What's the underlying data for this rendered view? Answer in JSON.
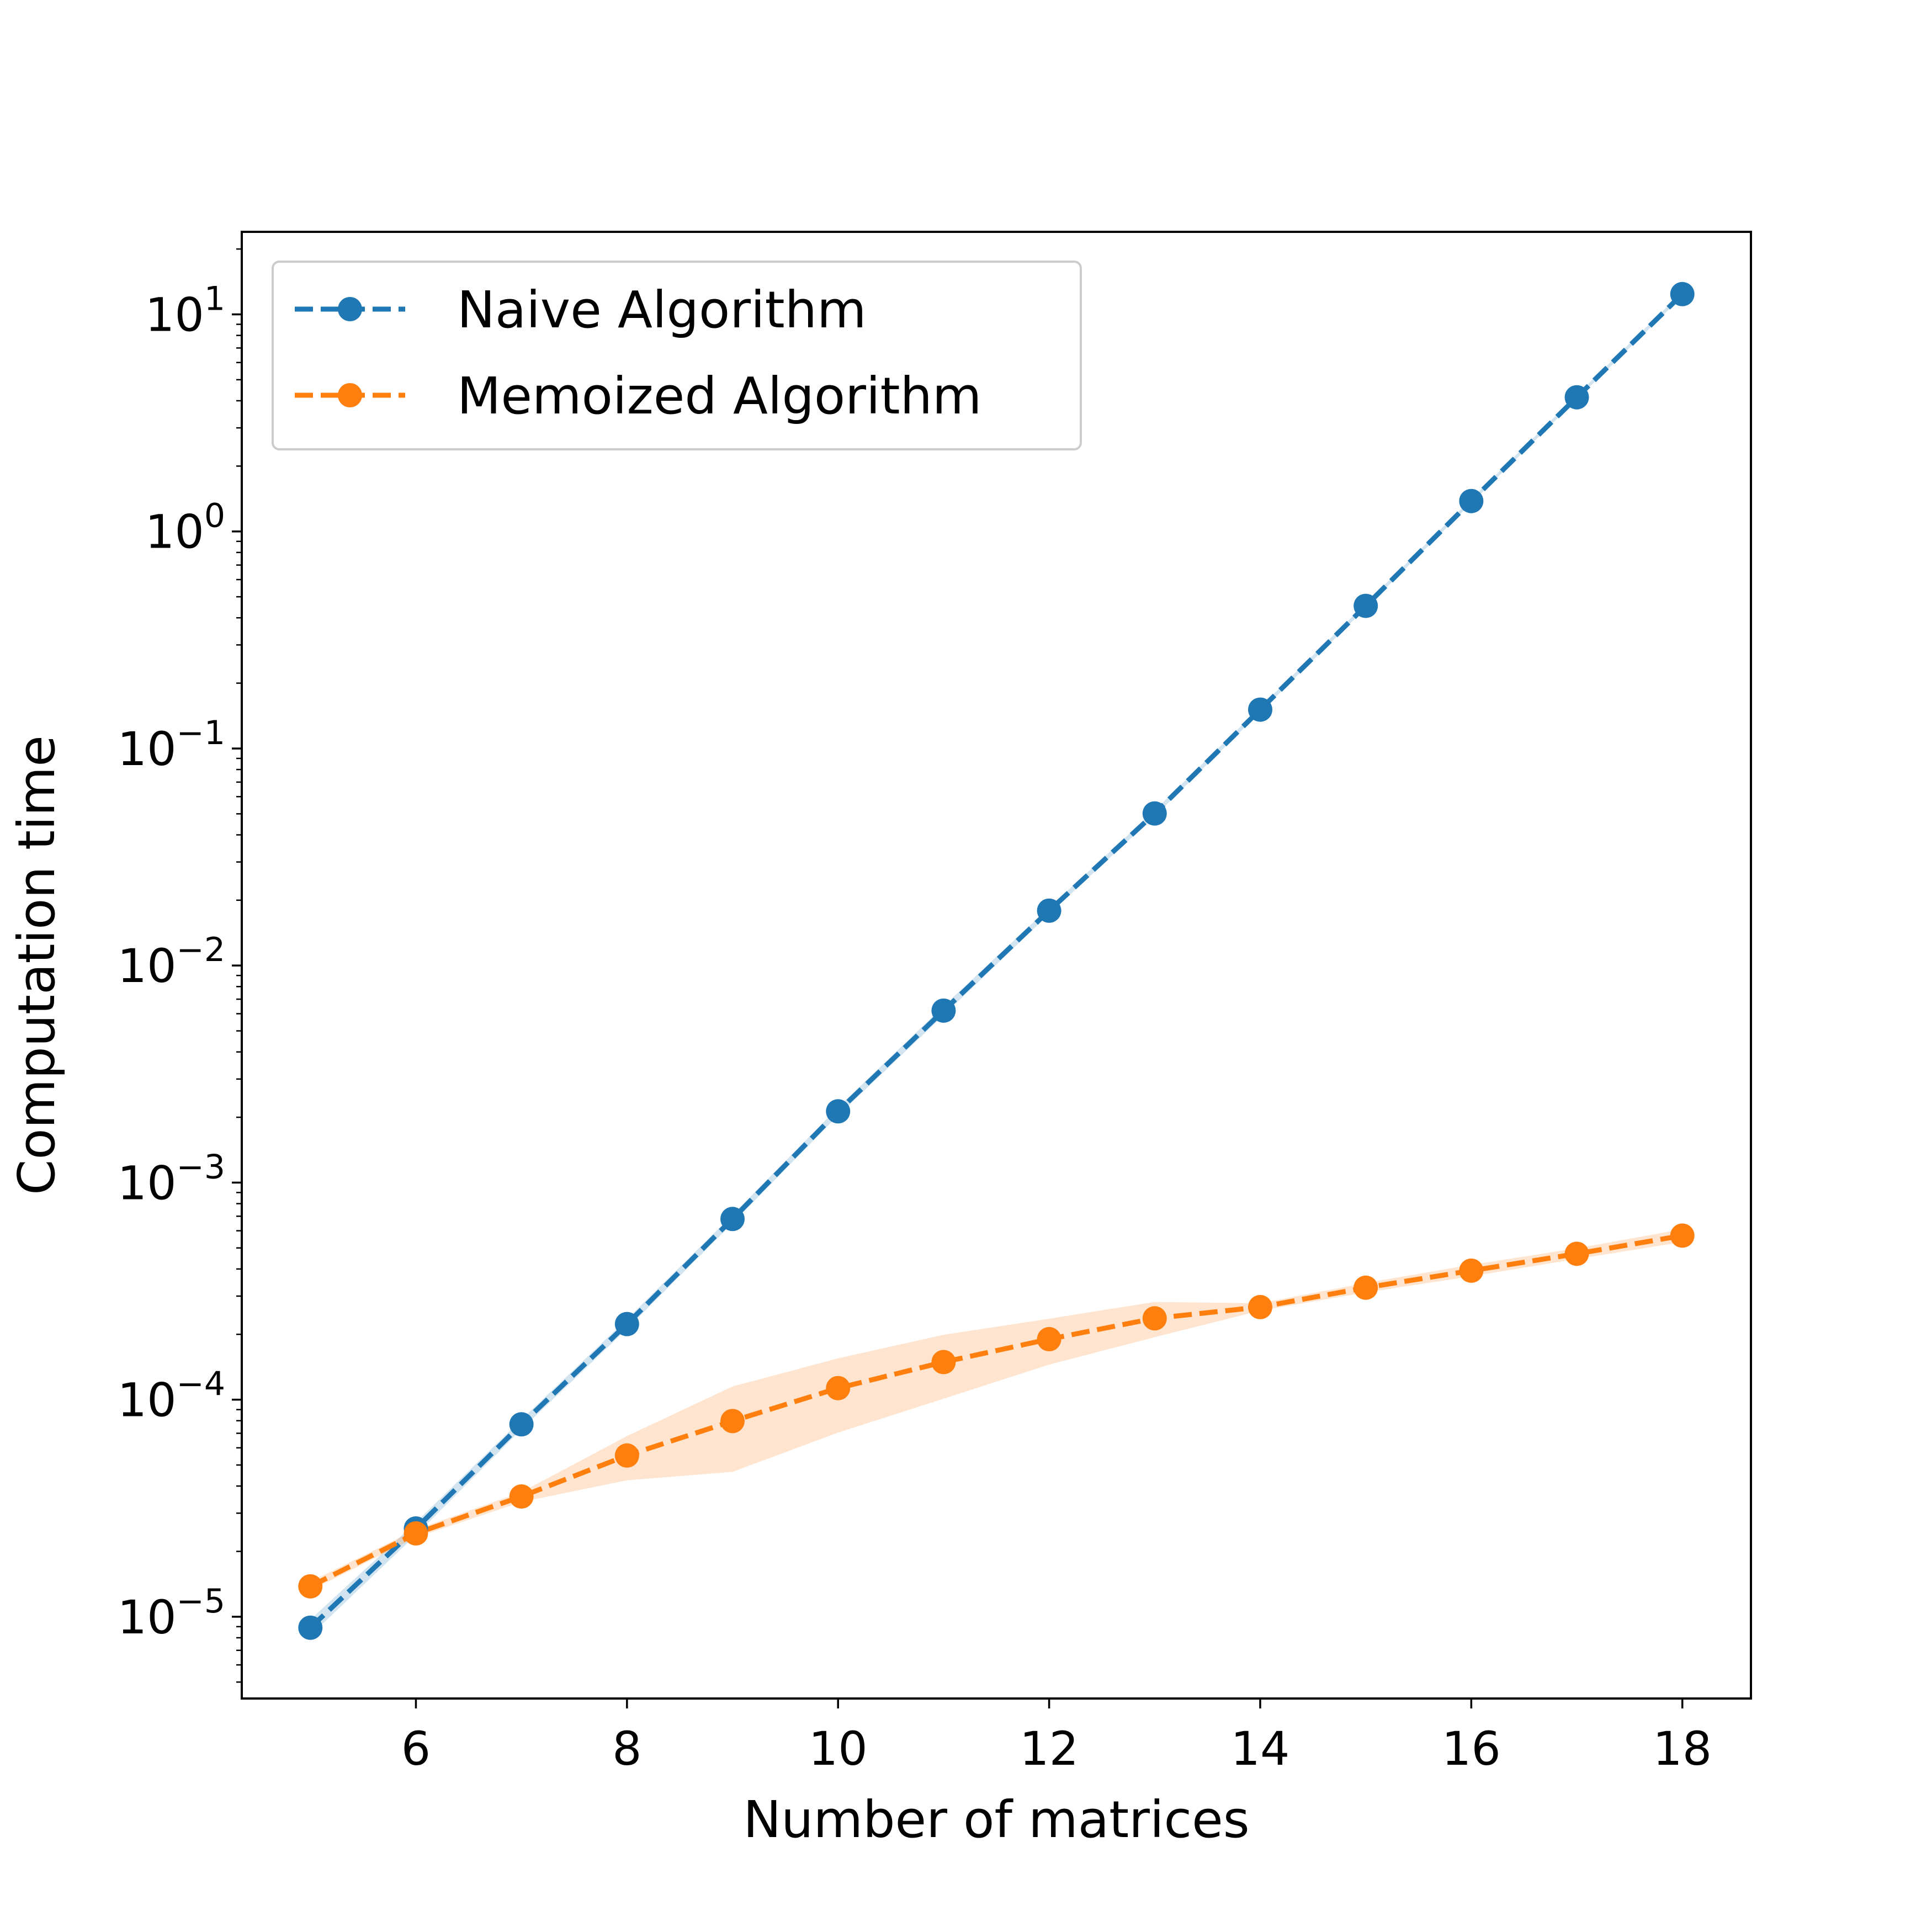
{
  "chart_data": {
    "type": "line",
    "xlabel": "Number of matrices",
    "ylabel": "Computation time",
    "yscale": "log",
    "xlim": [
      4.35,
      18.65
    ],
    "ylim": [
      4.2e-06,
      24
    ],
    "xticks": [
      6,
      8,
      10,
      12,
      14,
      16,
      18
    ],
    "yticks": [
      {
        "value": 1e-05,
        "base": "10",
        "exp": "−5"
      },
      {
        "value": 0.0001,
        "base": "10",
        "exp": "−4"
      },
      {
        "value": 0.001,
        "base": "10",
        "exp": "−3"
      },
      {
        "value": 0.01,
        "base": "10",
        "exp": "−2"
      },
      {
        "value": 0.1,
        "base": "10",
        "exp": "−1"
      },
      {
        "value": 1,
        "base": "10",
        "exp": "0"
      },
      {
        "value": 10,
        "base": "10",
        "exp": "1"
      }
    ],
    "grid": false,
    "legend": {
      "placement": "upper-left"
    },
    "x": [
      5,
      6,
      7,
      8,
      9,
      10,
      11,
      12,
      13,
      14,
      15,
      16,
      17,
      18
    ],
    "series": [
      {
        "name": "Naive Algorithm",
        "color": "#1f77b4",
        "linestyle": "dashed",
        "marker": "circle",
        "values": [
          8.9e-06,
          2.55e-05,
          7.7e-05,
          0.000223,
          0.00068,
          0.00213,
          0.0062,
          0.0179,
          0.0502,
          0.151,
          0.454,
          1.38,
          4.15,
          12.4
        ],
        "band_lower": [
          8.2e-06,
          2.38e-05,
          7.3e-05,
          0.000212,
          0.00065,
          0.00204,
          0.0059,
          0.0173,
          0.0487,
          0.147,
          0.443,
          1.35,
          4.06,
          12.1
        ],
        "band_upper": [
          9.7e-06,
          2.72e-05,
          8.1e-05,
          0.000235,
          0.00071,
          0.00222,
          0.0065,
          0.0185,
          0.0518,
          0.155,
          0.466,
          1.41,
          4.25,
          12.7
        ]
      },
      {
        "name": "Memoized Algorithm",
        "color": "#ff7f0e",
        "linestyle": "dashed",
        "marker": "circle",
        "values": [
          1.38e-05,
          2.42e-05,
          3.58e-05,
          5.53e-05,
          7.97e-05,
          0.000113,
          0.000149,
          0.00019,
          0.000237,
          0.000267,
          0.000328,
          0.000393,
          0.00047,
          0.00057
        ],
        "band_lower": [
          1.32e-05,
          2.32e-05,
          3.38e-05,
          4.25e-05,
          4.65e-05,
          7.05e-05,
          0.000101,
          0.000145,
          0.000194,
          0.000257,
          0.000312,
          0.00037,
          0.000445,
          0.000532
        ],
        "band_upper": [
          1.45e-05,
          2.52e-05,
          3.75e-05,
          6.8e-05,
          0.000115,
          0.000155,
          0.000199,
          0.000236,
          0.000282,
          0.000278,
          0.000345,
          0.000418,
          0.000498,
          0.00061
        ]
      }
    ]
  }
}
